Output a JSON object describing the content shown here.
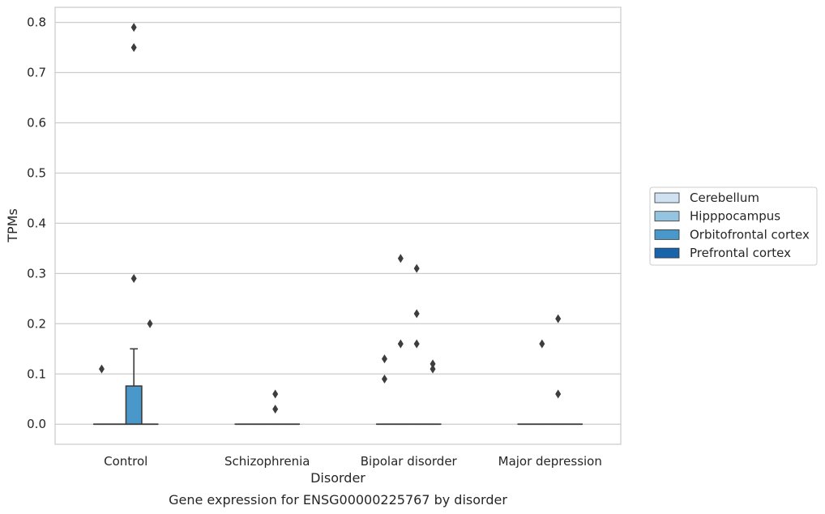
{
  "chart_data": {
    "type": "box",
    "xlabel": "Disorder",
    "ylabel": "TPMs",
    "caption": "Gene expression for ENSG00000225767 by disorder",
    "ylim": [
      -0.04,
      0.83
    ],
    "yticks": [
      0.0,
      0.1,
      0.2,
      0.3,
      0.4,
      0.5,
      0.6,
      0.7,
      0.8
    ],
    "ytick_labels": [
      "0.0",
      "0.1",
      "0.2",
      "0.3",
      "0.4",
      "0.5",
      "0.6",
      "0.7",
      "0.8"
    ],
    "grid": true,
    "legend_placement": "right",
    "categories": [
      "Control",
      "Schizophrenia",
      "Bipolar disorder",
      "Major depression"
    ],
    "series": [
      {
        "name": "Cerebellum",
        "color": "#d0e1f2",
        "boxes": [
          {
            "q1": 0,
            "median": 0,
            "q3": 0,
            "whisker_low": 0,
            "whisker_high": 0,
            "outliers": [
              0.11
            ]
          },
          {
            "q1": 0,
            "median": 0,
            "q3": 0,
            "whisker_low": 0,
            "whisker_high": 0,
            "outliers": []
          },
          {
            "q1": 0,
            "median": 0,
            "q3": 0,
            "whisker_low": 0,
            "whisker_high": 0,
            "outliers": [
              0.09,
              0.13
            ]
          },
          {
            "q1": 0,
            "median": 0,
            "q3": 0,
            "whisker_low": 0,
            "whisker_high": 0,
            "outliers": []
          }
        ]
      },
      {
        "name": "Hipppocampus",
        "color": "#94c4df",
        "boxes": [
          {
            "q1": 0,
            "median": 0,
            "q3": 0,
            "whisker_low": 0,
            "whisker_high": 0,
            "outliers": []
          },
          {
            "q1": 0,
            "median": 0,
            "q3": 0,
            "whisker_low": 0,
            "whisker_high": 0,
            "outliers": []
          },
          {
            "q1": 0,
            "median": 0,
            "q3": 0,
            "whisker_low": 0,
            "whisker_high": 0,
            "outliers": [
              0.16,
              0.33
            ]
          },
          {
            "q1": 0,
            "median": 0,
            "q3": 0,
            "whisker_low": 0,
            "whisker_high": 0,
            "outliers": [
              0.16
            ]
          }
        ]
      },
      {
        "name": "Orbitofrontal cortex",
        "color": "#4a98c9",
        "boxes": [
          {
            "q1": 0,
            "median": 0,
            "q3": 0.076,
            "whisker_low": 0,
            "whisker_high": 0.15,
            "outliers": [
              0.29,
              0.75,
              0.79
            ]
          },
          {
            "q1": 0,
            "median": 0,
            "q3": 0,
            "whisker_low": 0,
            "whisker_high": 0,
            "outliers": [
              0.03,
              0.06
            ]
          },
          {
            "q1": 0,
            "median": 0,
            "q3": 0,
            "whisker_low": 0,
            "whisker_high": 0,
            "outliers": [
              0.16,
              0.22,
              0.31
            ]
          },
          {
            "q1": 0,
            "median": 0,
            "q3": 0,
            "whisker_low": 0,
            "whisker_high": 0,
            "outliers": [
              0.06,
              0.21
            ]
          }
        ]
      },
      {
        "name": "Prefrontal cortex",
        "color": "#1764ab",
        "boxes": [
          {
            "q1": 0,
            "median": 0,
            "q3": 0,
            "whisker_low": 0,
            "whisker_high": 0,
            "outliers": [
              0.2
            ]
          },
          {
            "q1": 0,
            "median": 0,
            "q3": 0,
            "whisker_low": 0,
            "whisker_high": 0,
            "outliers": []
          },
          {
            "q1": 0,
            "median": 0,
            "q3": 0,
            "whisker_low": 0,
            "whisker_high": 0,
            "outliers": [
              0.11,
              0.12
            ]
          },
          {
            "q1": 0,
            "median": 0,
            "q3": 0,
            "whisker_low": 0,
            "whisker_high": 0,
            "outliers": []
          }
        ]
      }
    ]
  }
}
